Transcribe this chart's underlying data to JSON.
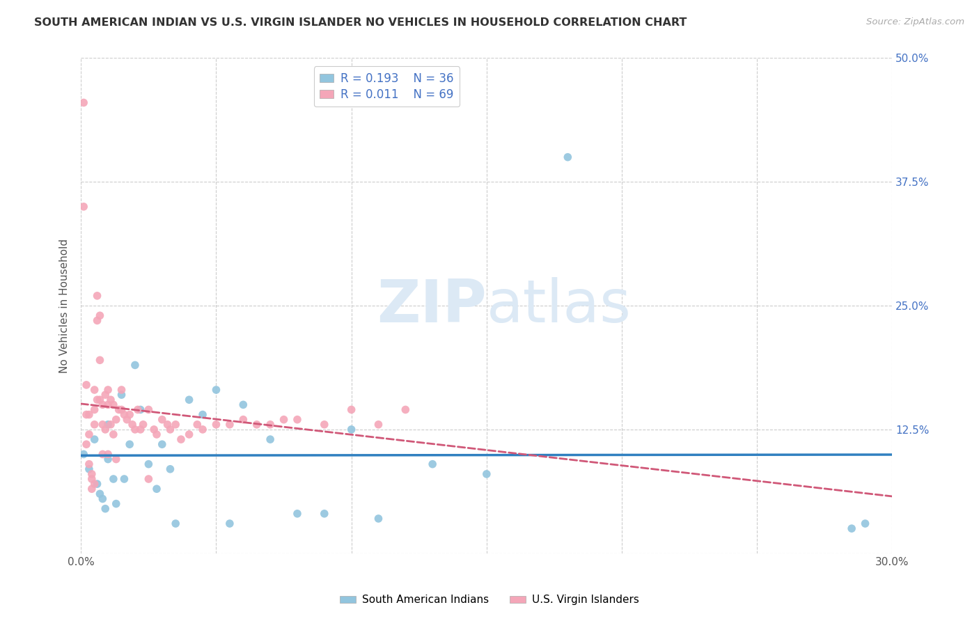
{
  "title": "SOUTH AMERICAN INDIAN VS U.S. VIRGIN ISLANDER NO VEHICLES IN HOUSEHOLD CORRELATION CHART",
  "source": "Source: ZipAtlas.com",
  "ylabel": "No Vehicles in Household",
  "xlim": [
    0.0,
    0.3
  ],
  "ylim": [
    0.0,
    0.5
  ],
  "xticks": [
    0.0,
    0.05,
    0.1,
    0.15,
    0.2,
    0.25,
    0.3
  ],
  "yticks": [
    0.0,
    0.125,
    0.25,
    0.375,
    0.5
  ],
  "blue_R": "0.193",
  "blue_N": "36",
  "pink_R": "0.011",
  "pink_N": "69",
  "legend_label_blue": "South American Indians",
  "legend_label_pink": "U.S. Virgin Islanders",
  "blue_color": "#92c5de",
  "pink_color": "#f4a6b8",
  "blue_line_color": "#3080c0",
  "pink_line_color": "#d05878",
  "background_color": "#ffffff",
  "watermark_color": "#dce9f5",
  "blue_scatter_x": [
    0.001,
    0.003,
    0.005,
    0.006,
    0.007,
    0.008,
    0.009,
    0.01,
    0.01,
    0.012,
    0.013,
    0.015,
    0.016,
    0.018,
    0.02,
    0.022,
    0.025,
    0.028,
    0.03,
    0.033,
    0.035,
    0.04,
    0.045,
    0.05,
    0.055,
    0.06,
    0.07,
    0.08,
    0.09,
    0.1,
    0.11,
    0.13,
    0.15,
    0.18,
    0.285,
    0.29
  ],
  "blue_scatter_y": [
    0.1,
    0.085,
    0.115,
    0.07,
    0.06,
    0.055,
    0.045,
    0.13,
    0.095,
    0.075,
    0.05,
    0.16,
    0.075,
    0.11,
    0.19,
    0.145,
    0.09,
    0.065,
    0.11,
    0.085,
    0.03,
    0.155,
    0.14,
    0.165,
    0.03,
    0.15,
    0.115,
    0.04,
    0.04,
    0.125,
    0.035,
    0.09,
    0.08,
    0.4,
    0.025,
    0.03
  ],
  "pink_scatter_x": [
    0.001,
    0.001,
    0.002,
    0.002,
    0.002,
    0.003,
    0.003,
    0.003,
    0.004,
    0.004,
    0.004,
    0.005,
    0.005,
    0.005,
    0.005,
    0.006,
    0.006,
    0.006,
    0.007,
    0.007,
    0.007,
    0.008,
    0.008,
    0.008,
    0.009,
    0.009,
    0.01,
    0.01,
    0.01,
    0.011,
    0.011,
    0.012,
    0.012,
    0.013,
    0.013,
    0.014,
    0.015,
    0.015,
    0.016,
    0.017,
    0.018,
    0.019,
    0.02,
    0.021,
    0.022,
    0.023,
    0.025,
    0.025,
    0.027,
    0.028,
    0.03,
    0.032,
    0.033,
    0.035,
    0.037,
    0.04,
    0.043,
    0.045,
    0.05,
    0.055,
    0.06,
    0.065,
    0.07,
    0.075,
    0.08,
    0.09,
    0.1,
    0.11,
    0.12
  ],
  "pink_scatter_y": [
    0.455,
    0.35,
    0.17,
    0.14,
    0.11,
    0.14,
    0.12,
    0.09,
    0.08,
    0.075,
    0.065,
    0.165,
    0.145,
    0.13,
    0.07,
    0.26,
    0.235,
    0.155,
    0.24,
    0.195,
    0.155,
    0.15,
    0.13,
    0.1,
    0.16,
    0.125,
    0.165,
    0.15,
    0.1,
    0.155,
    0.13,
    0.15,
    0.12,
    0.135,
    0.095,
    0.145,
    0.165,
    0.145,
    0.14,
    0.135,
    0.14,
    0.13,
    0.125,
    0.145,
    0.125,
    0.13,
    0.145,
    0.075,
    0.125,
    0.12,
    0.135,
    0.13,
    0.125,
    0.13,
    0.115,
    0.12,
    0.13,
    0.125,
    0.13,
    0.13,
    0.135,
    0.13,
    0.13,
    0.135,
    0.135,
    0.13,
    0.145,
    0.13,
    0.145
  ]
}
